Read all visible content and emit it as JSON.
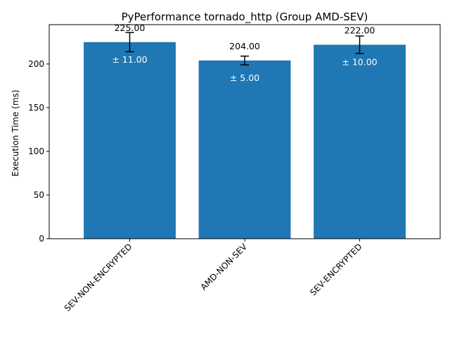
{
  "chart_data": {
    "type": "bar",
    "title": "PyPerformance tornado_http (Group AMD-SEV)",
    "xlabel": "",
    "ylabel": "Execution Time (ms)",
    "categories": [
      "SEV-NON-ENCRYPTED",
      "AMD-NON-SEV",
      "SEV-ENCRYPTED"
    ],
    "values": [
      225.0,
      204.0,
      222.0
    ],
    "errors": [
      11.0,
      5.0,
      10.0
    ],
    "value_labels": [
      "225.00",
      "204.00",
      "222.00"
    ],
    "error_labels": [
      "± 11.00",
      "± 5.00",
      "± 10.00"
    ],
    "ylim": [
      0,
      245
    ],
    "yticks": [
      0,
      50,
      100,
      150,
      200
    ],
    "bar_color": "#1f77b4",
    "grid": false,
    "legend": "none"
  }
}
